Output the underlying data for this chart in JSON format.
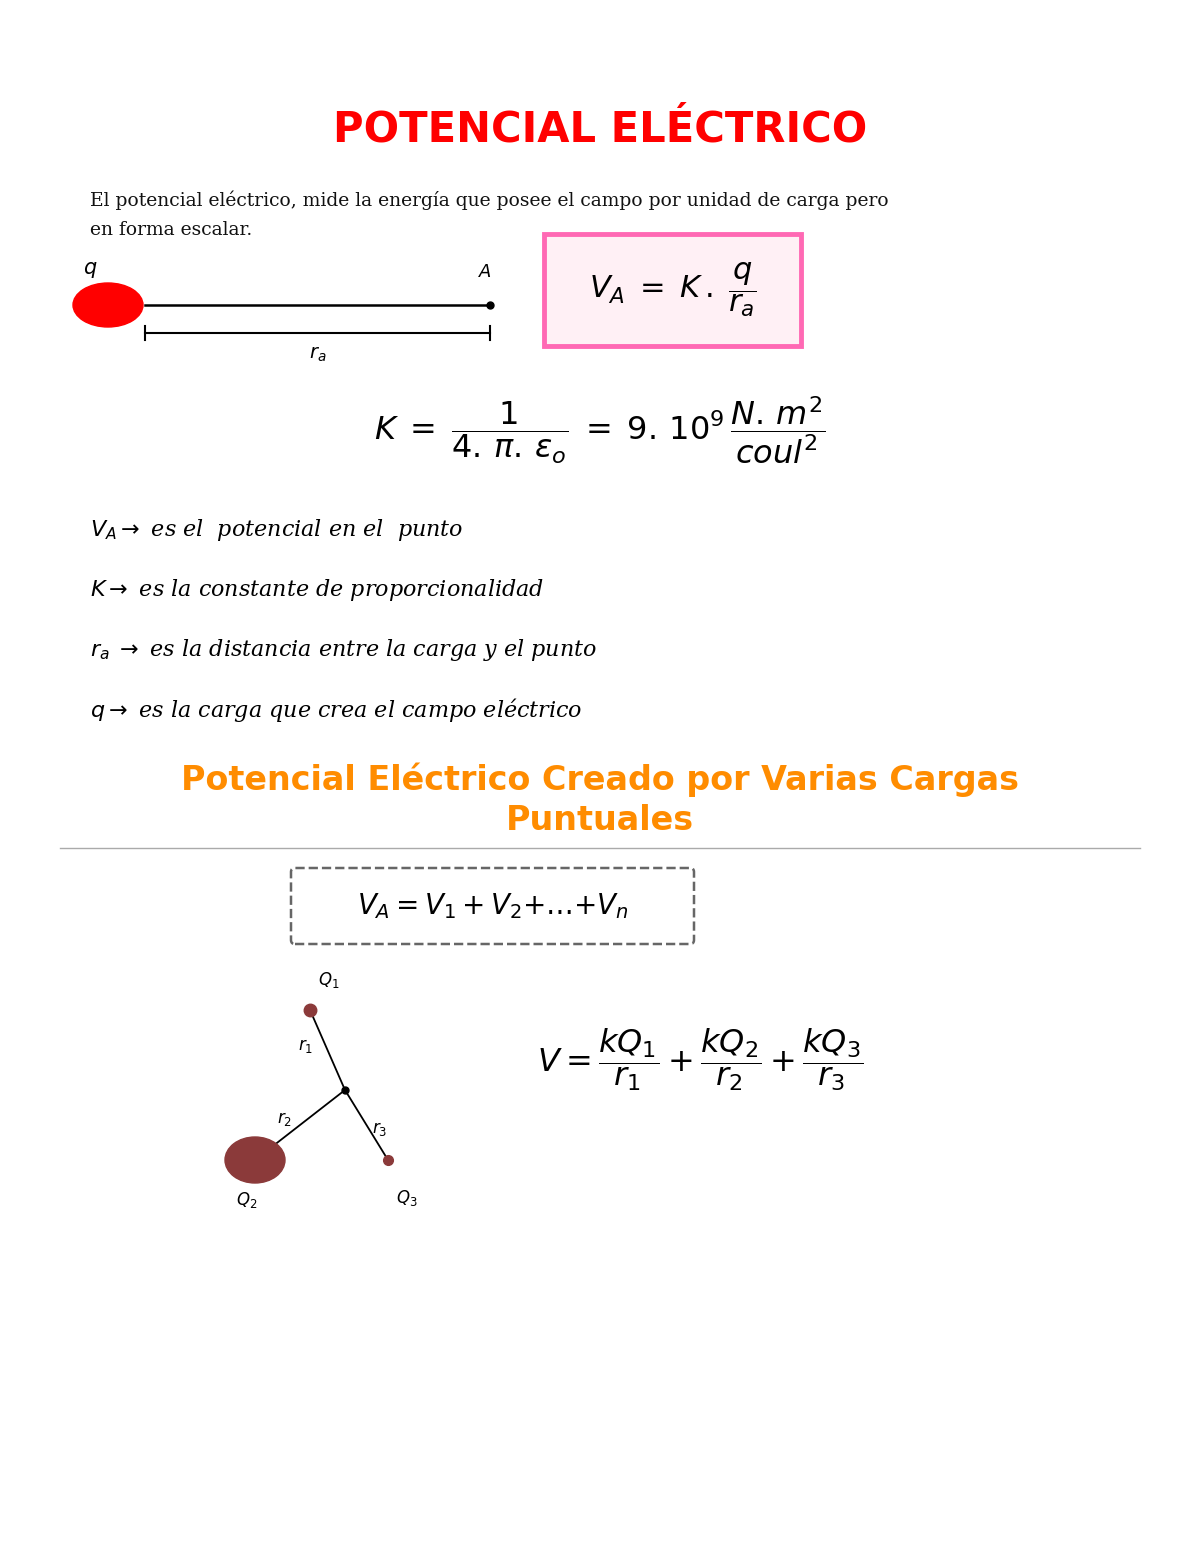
{
  "title": "POTENCIAL ELÉCTRICO",
  "title_color": "#FF0000",
  "title_fontsize": 28,
  "bg_color": "#FFFFFF",
  "intro_line1": "El potencial eléctrico, mide la energía que posee el campo por unidad de carga pero",
  "intro_line2": "en forma escalar.",
  "formula_box_color": "#FF69B4",
  "formula_box_face": "#FFF0F5",
  "orange_title_line1": "Potencial Eléctrico Creado por Varias Cargas",
  "orange_title_line2": "Puntuales",
  "orange_color": "#FF8C00",
  "def1": "$V_A \\rightarrow$ es el  potencial en el  punto",
  "def2": "$K \\rightarrow$ es la constante de proporcionalidad",
  "def3": "$r_a\\; \\rightarrow$ es la distancia entre la carga y el punto",
  "def4": "$q \\rightarrow$ es la carga que crea el campo eléctrico",
  "charge_color": "#8B3A3A",
  "separator_color": "#AAAAAA"
}
